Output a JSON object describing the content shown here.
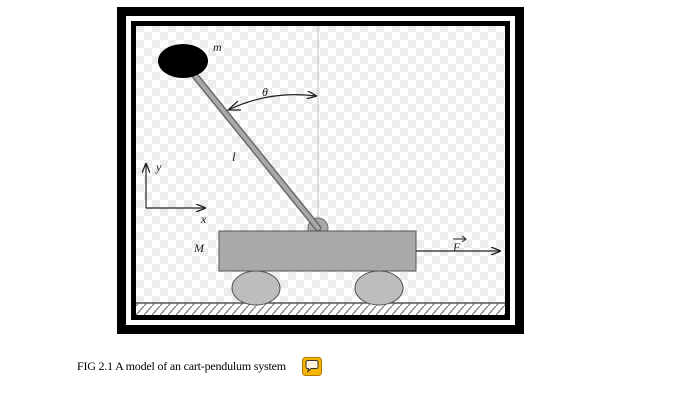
{
  "figure": {
    "labels": {
      "mass": "m",
      "angle": "θ",
      "length": "l",
      "y_axis": "y",
      "x_axis": "x",
      "cart_mass": "M",
      "force": "F"
    },
    "colors": {
      "frame": "#000000",
      "checker_light": "#ffffff",
      "checker_dark": "#ededed",
      "cart": "#a9a9a9",
      "wheel": "#bdbdbd",
      "rod": "#a9a9a9",
      "bob": "#000000"
    }
  },
  "caption": {
    "text": "FIG 2.1 A model of an cart-pendulum system"
  },
  "icons": {
    "comment": "speech-bubble-icon"
  }
}
